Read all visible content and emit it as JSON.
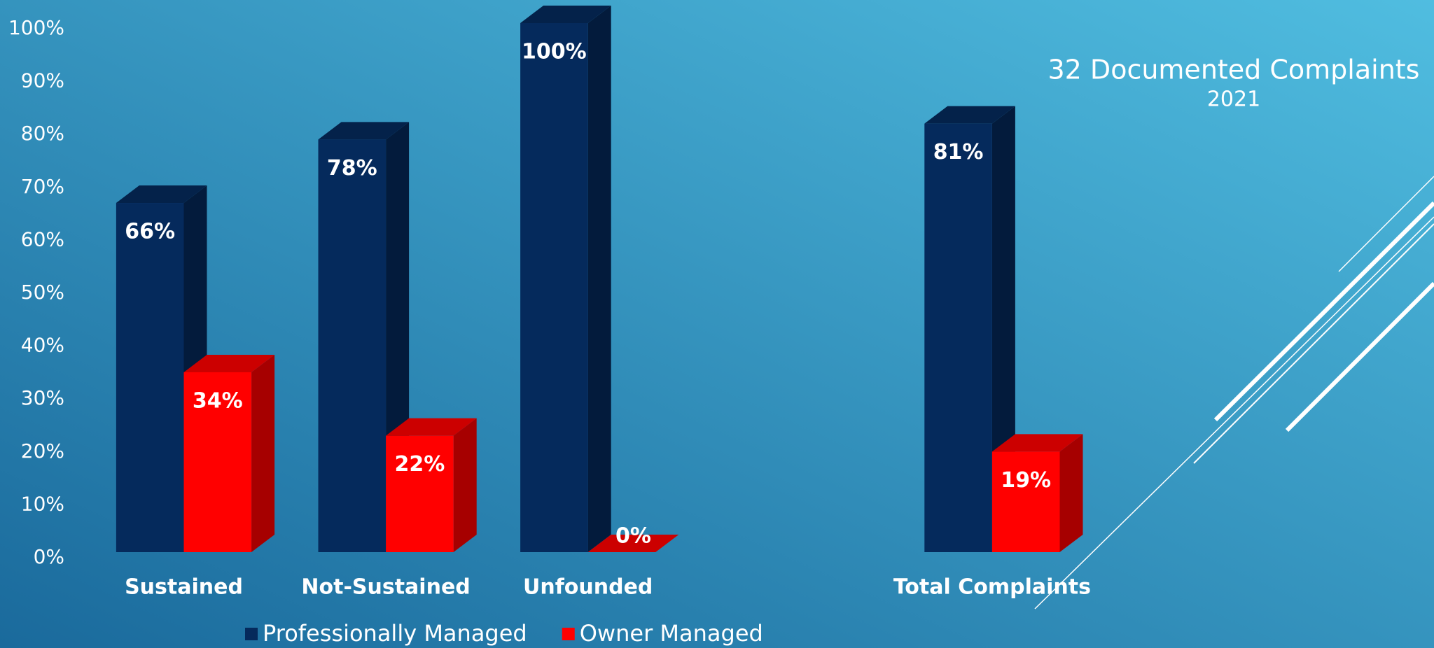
{
  "chart_data": {
    "type": "bar3d",
    "title": "32 Documented Complaints",
    "subtitle": "2021",
    "categories": [
      "Sustained",
      "Not-Sustained",
      "Unfounded",
      null,
      "Total Complaints"
    ],
    "series": [
      {
        "name": "Professionally Managed",
        "color": "#052a5c",
        "values": [
          66,
          78,
          100,
          null,
          81
        ],
        "value_labels": [
          "66%",
          "78%",
          "100%",
          null,
          "81%"
        ]
      },
      {
        "name": "Owner Managed",
        "color": "#ff0000",
        "values": [
          34,
          22,
          0,
          null,
          19
        ],
        "value_labels": [
          "34%",
          "22%",
          "0%",
          null,
          "19%"
        ]
      }
    ],
    "ylim": [
      0,
      100
    ],
    "yticks": [
      {
        "value": 0,
        "label": "0%"
      },
      {
        "value": 10,
        "label": "10%"
      },
      {
        "value": 20,
        "label": "20%"
      },
      {
        "value": 30,
        "label": "30%"
      },
      {
        "value": 40,
        "label": "40%"
      },
      {
        "value": 50,
        "label": "50%"
      },
      {
        "value": 60,
        "label": "60%"
      },
      {
        "value": 70,
        "label": "70%"
      },
      {
        "value": 80,
        "label": "80%"
      },
      {
        "value": 90,
        "label": "90%"
      },
      {
        "value": 100,
        "label": "100%"
      }
    ],
    "grid": false,
    "legend": "bottom"
  }
}
